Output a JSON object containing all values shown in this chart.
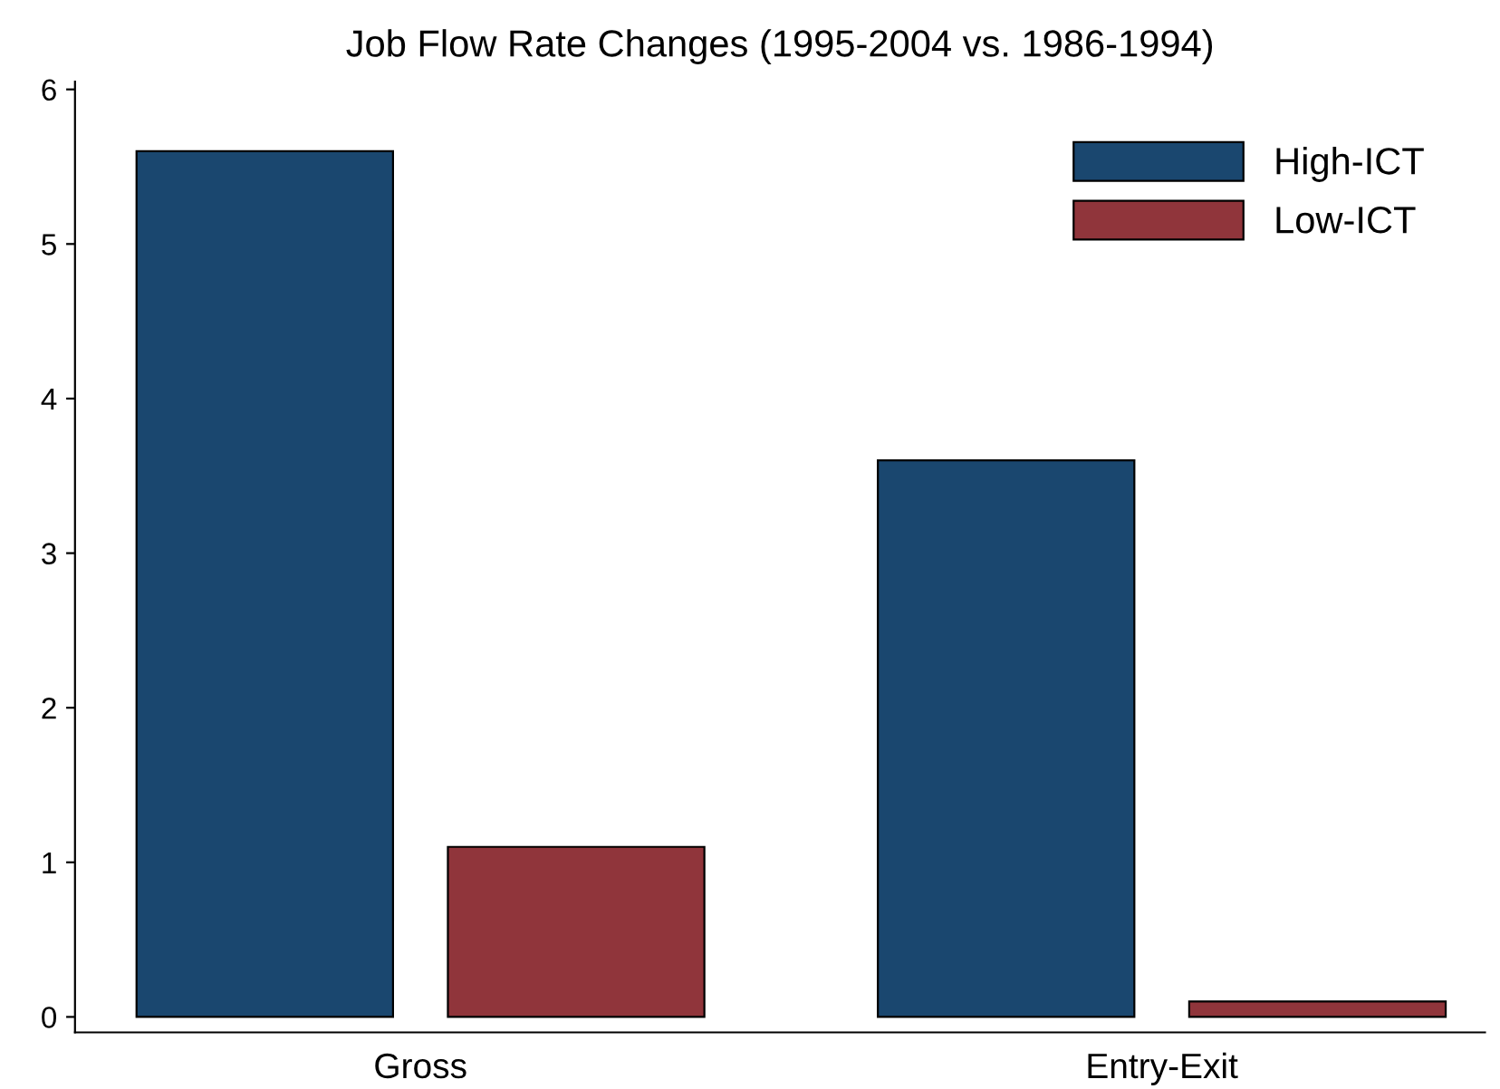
{
  "chart_data": {
    "type": "bar",
    "title": "Job Flow Rate Changes (1995-2004 vs. 1986-1994)",
    "categories": [
      "Gross",
      "Entry-Exit"
    ],
    "series": [
      {
        "name": "High-ICT",
        "color": "#1a476f",
        "values": [
          5.6,
          3.6
        ]
      },
      {
        "name": "Low-ICT",
        "color": "#90353b",
        "values": [
          1.1,
          0.1
        ]
      }
    ],
    "ylim": [
      -0.1,
      6.05
    ],
    "yticks": [
      0,
      1,
      2,
      3,
      4,
      5,
      6
    ],
    "grid": false,
    "legend": "top right"
  }
}
